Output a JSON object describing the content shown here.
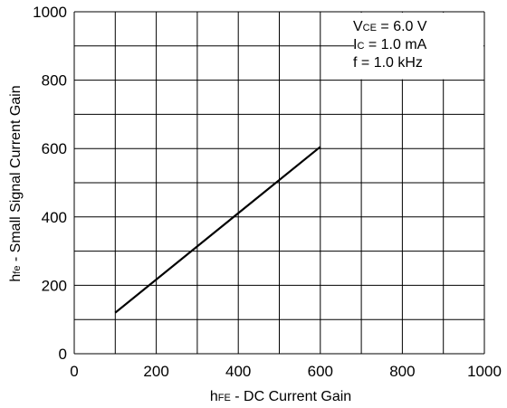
{
  "chart_data": {
    "type": "line",
    "xlabel": {
      "main": "h",
      "sub": "FE",
      "rest": " - DC Current Gain"
    },
    "ylabel": {
      "main": "h",
      "sub": "fe",
      "rest": " - Small Signal Current Gain"
    },
    "xlim": [
      0,
      1000
    ],
    "ylim": [
      0,
      1000
    ],
    "x_ticks": [
      "0",
      "200",
      "400",
      "600",
      "800",
      "1000"
    ],
    "y_ticks": [
      "0",
      "200",
      "400",
      "600",
      "800",
      "1000"
    ],
    "grid": true,
    "series": [
      {
        "x": [
          100,
          600
        ],
        "y": [
          120,
          605
        ],
        "color": "#000000"
      }
    ],
    "conditions": [
      {
        "main": "V",
        "sub": "CE",
        "rest": " = 6.0 V"
      },
      {
        "main": "I",
        "sub": "C",
        "rest": " = 1.0 mA"
      },
      {
        "main": "f",
        "sub": "",
        "rest": " = 1.0 kHz"
      }
    ]
  }
}
